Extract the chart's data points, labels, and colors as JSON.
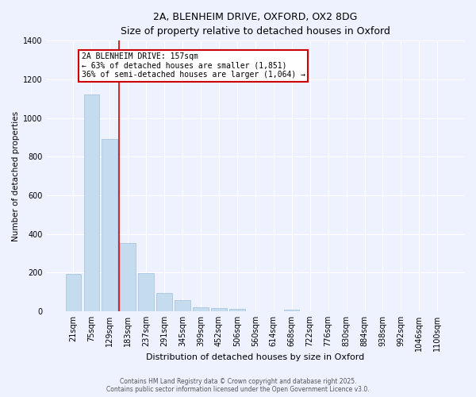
{
  "title_line1": "2A, BLENHEIM DRIVE, OXFORD, OX2 8DG",
  "title_line2": "Size of property relative to detached houses in Oxford",
  "xlabel": "Distribution of detached houses by size in Oxford",
  "ylabel": "Number of detached properties",
  "categories": [
    "21sqm",
    "75sqm",
    "129sqm",
    "183sqm",
    "237sqm",
    "291sqm",
    "345sqm",
    "399sqm",
    "452sqm",
    "506sqm",
    "560sqm",
    "614sqm",
    "668sqm",
    "722sqm",
    "776sqm",
    "830sqm",
    "884sqm",
    "938sqm",
    "992sqm",
    "1046sqm",
    "1100sqm"
  ],
  "values": [
    195,
    1120,
    890,
    355,
    197,
    93,
    58,
    22,
    18,
    12,
    0,
    0,
    10,
    0,
    0,
    0,
    0,
    0,
    0,
    0,
    0
  ],
  "bar_color": "#c5dcee",
  "bar_edgecolor": "#a0c0dc",
  "vline_color": "#cc0000",
  "annotation_text": "2A BLENHEIM DRIVE: 157sqm\n← 63% of detached houses are smaller (1,851)\n36% of semi-detached houses are larger (1,064) →",
  "annotation_box_color": "#cc0000",
  "annotation_bg": "white",
  "ylim": [
    0,
    1400
  ],
  "yticks": [
    0,
    200,
    400,
    600,
    800,
    1000,
    1200,
    1400
  ],
  "bg_color": "#eef2ff",
  "grid_color": "#ffffff",
  "footer_line1": "Contains HM Land Registry data © Crown copyright and database right 2025.",
  "footer_line2": "Contains public sector information licensed under the Open Government Licence v3.0."
}
